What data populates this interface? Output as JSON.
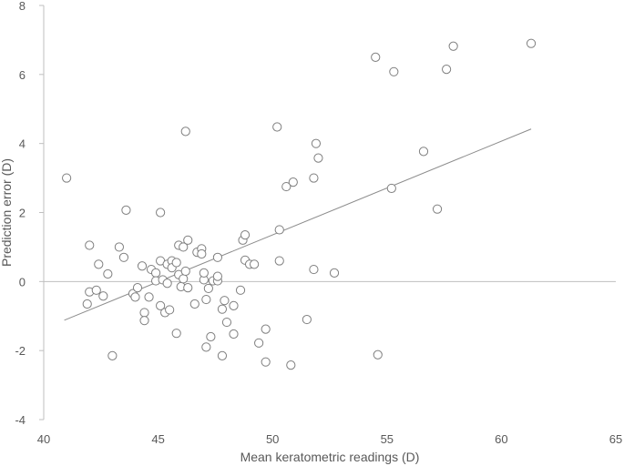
{
  "chart_data": {
    "type": "scatter",
    "title": "",
    "xlabel": "Mean keratometric readings (D)",
    "ylabel": "Prediction error (D)",
    "xlim": [
      40,
      65
    ],
    "ylim": [
      -4,
      8
    ],
    "xticks": [
      40,
      45,
      50,
      55,
      60,
      65
    ],
    "yticks": [
      -4,
      -2,
      0,
      2,
      4,
      6,
      8
    ],
    "grid": false,
    "legend": "none",
    "colors": {
      "axis": "#bfbfbf",
      "marker_stroke": "#7f7f7f",
      "trend": "#8c8c8c",
      "text": "#595959"
    },
    "trendline": {
      "x": [
        40.9,
        61.3
      ],
      "y": [
        -1.12,
        4.42
      ]
    },
    "points": [
      [
        41.0,
        3.0
      ],
      [
        41.9,
        -0.65
      ],
      [
        42.0,
        -0.3
      ],
      [
        42.0,
        1.05
      ],
      [
        42.3,
        -0.25
      ],
      [
        42.4,
        0.5
      ],
      [
        42.6,
        -0.42
      ],
      [
        42.8,
        0.22
      ],
      [
        43.0,
        -2.15
      ],
      [
        43.3,
        1.0
      ],
      [
        43.5,
        0.7
      ],
      [
        43.6,
        2.07
      ],
      [
        43.9,
        -0.35
      ],
      [
        44.0,
        -0.45
      ],
      [
        44.1,
        -0.18
      ],
      [
        44.3,
        0.45
      ],
      [
        44.4,
        -0.9
      ],
      [
        44.4,
        -1.13
      ],
      [
        44.6,
        -0.45
      ],
      [
        44.7,
        0.35
      ],
      [
        44.9,
        0.25
      ],
      [
        44.9,
        0.02
      ],
      [
        45.1,
        0.6
      ],
      [
        45.1,
        -0.7
      ],
      [
        45.1,
        2.0
      ],
      [
        45.2,
        0.05
      ],
      [
        45.3,
        -0.9
      ],
      [
        45.4,
        0.5
      ],
      [
        45.4,
        -0.05
      ],
      [
        45.5,
        -0.82
      ],
      [
        45.6,
        0.6
      ],
      [
        45.6,
        0.4
      ],
      [
        45.8,
        0.55
      ],
      [
        45.8,
        -1.5
      ],
      [
        45.9,
        1.05
      ],
      [
        45.9,
        0.2
      ],
      [
        46.0,
        -0.15
      ],
      [
        46.1,
        1.0
      ],
      [
        46.1,
        0.08
      ],
      [
        46.2,
        4.35
      ],
      [
        46.2,
        0.3
      ],
      [
        46.3,
        1.2
      ],
      [
        46.3,
        -0.18
      ],
      [
        46.6,
        -0.65
      ],
      [
        46.7,
        0.85
      ],
      [
        46.9,
        0.95
      ],
      [
        46.9,
        0.8
      ],
      [
        47.0,
        0.05
      ],
      [
        47.0,
        0.25
      ],
      [
        47.1,
        -1.9
      ],
      [
        47.1,
        -0.52
      ],
      [
        47.2,
        -0.2
      ],
      [
        47.3,
        -1.6
      ],
      [
        47.4,
        0.02
      ],
      [
        47.6,
        0.7
      ],
      [
        47.6,
        0.02
      ],
      [
        47.6,
        0.15
      ],
      [
        47.8,
        -2.15
      ],
      [
        47.8,
        -0.8
      ],
      [
        47.9,
        -0.55
      ],
      [
        48.0,
        -1.18
      ],
      [
        48.3,
        -0.7
      ],
      [
        48.3,
        -1.52
      ],
      [
        48.6,
        -0.25
      ],
      [
        48.7,
        1.2
      ],
      [
        48.8,
        1.35
      ],
      [
        48.8,
        0.62
      ],
      [
        49.0,
        0.5
      ],
      [
        49.2,
        0.5
      ],
      [
        49.4,
        -1.78
      ],
      [
        49.7,
        -2.33
      ],
      [
        49.7,
        -1.38
      ],
      [
        50.2,
        4.48
      ],
      [
        50.3,
        1.5
      ],
      [
        50.3,
        0.6
      ],
      [
        50.6,
        2.75
      ],
      [
        50.8,
        -2.42
      ],
      [
        50.9,
        2.88
      ],
      [
        51.5,
        -1.1
      ],
      [
        51.8,
        0.35
      ],
      [
        51.8,
        3.0
      ],
      [
        51.9,
        4.0
      ],
      [
        52.0,
        3.58
      ],
      [
        52.7,
        0.25
      ],
      [
        54.5,
        6.5
      ],
      [
        54.6,
        -2.12
      ],
      [
        55.2,
        2.7
      ],
      [
        55.3,
        6.08
      ],
      [
        56.6,
        3.77
      ],
      [
        57.2,
        2.1
      ],
      [
        57.6,
        6.15
      ],
      [
        57.9,
        6.82
      ],
      [
        61.3,
        6.9
      ]
    ]
  }
}
